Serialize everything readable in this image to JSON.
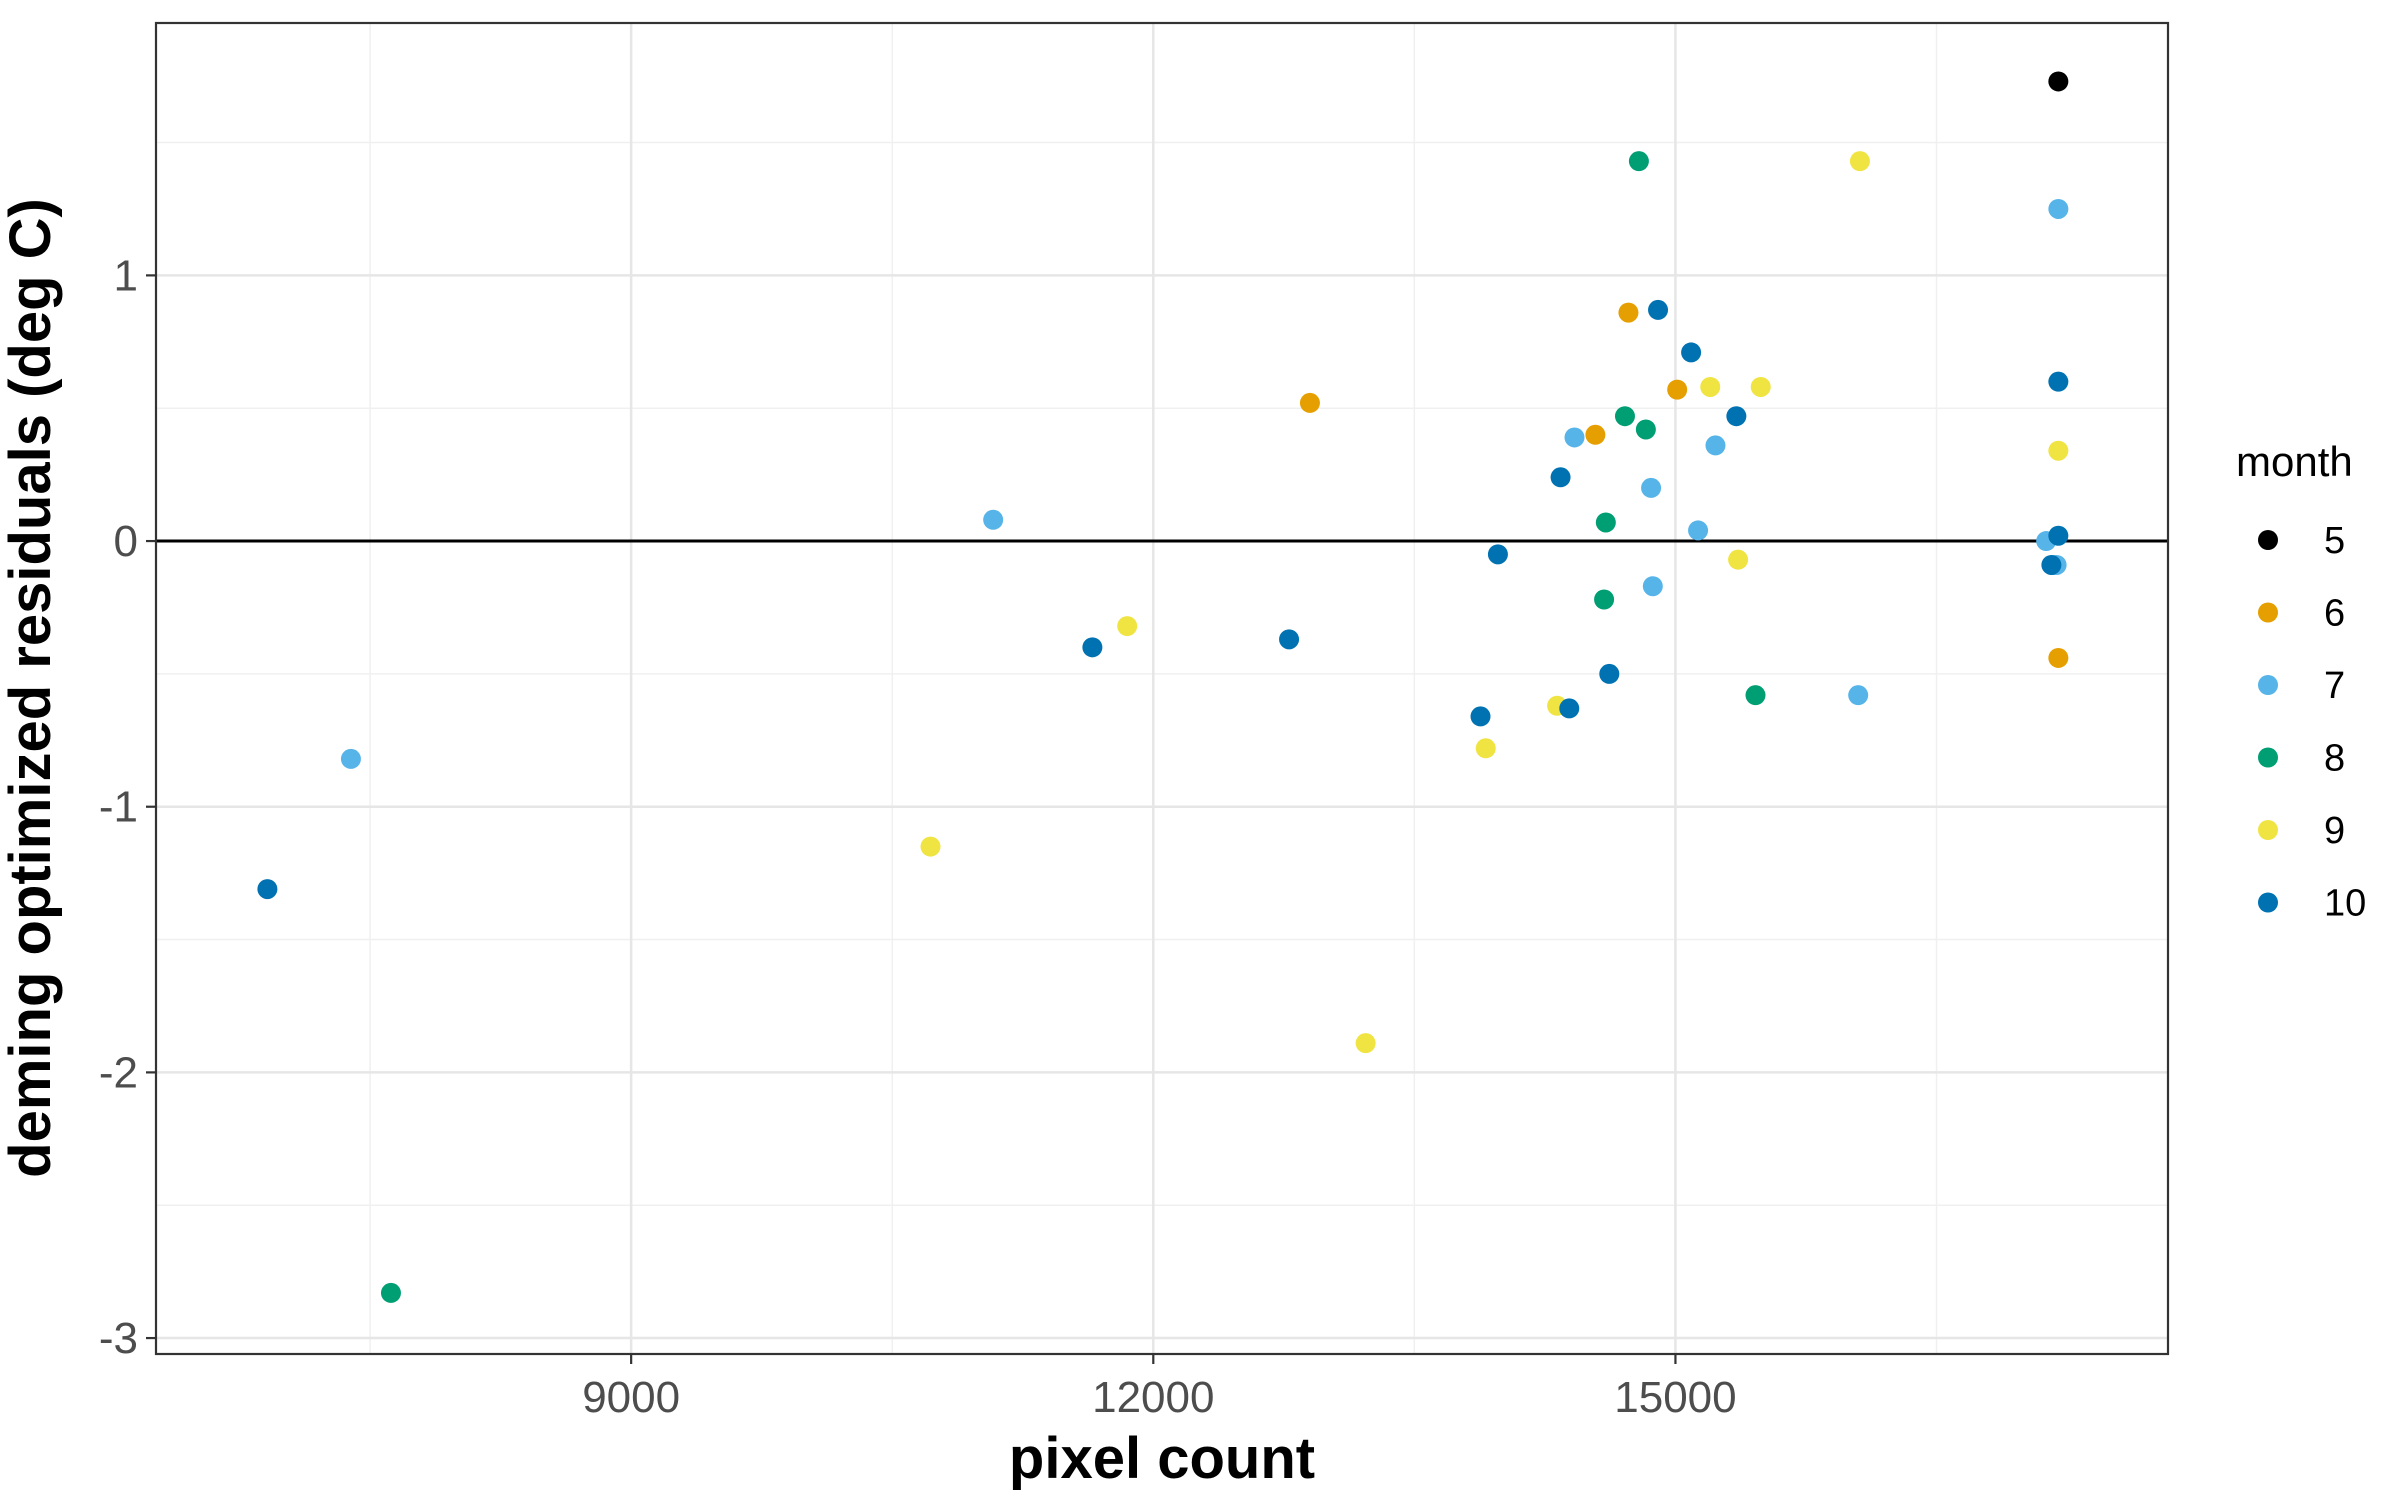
{
  "chart_data": {
    "type": "scatter",
    "xlabel": "pixel count",
    "ylabel": "deming optimized residuals (deg C)",
    "xlim": [
      6270,
      17830
    ],
    "ylim": [
      -3.06,
      1.95
    ],
    "x_ticks": [
      9000,
      12000,
      15000
    ],
    "x_tick_labels": [
      "9000",
      "12000",
      "15000"
    ],
    "y_ticks": [
      -3,
      -2,
      -1,
      0,
      1
    ],
    "y_tick_labels": [
      "-3",
      "-2",
      "-1",
      "0",
      "1"
    ],
    "x_minor_gridlines": [
      7500,
      10500,
      13500,
      16500
    ],
    "y_minor_gridlines": [
      -2.5,
      -1.5,
      -0.5,
      0.5,
      1.5
    ],
    "grid": true,
    "hline": 0,
    "legend": {
      "title": "month",
      "position": "right"
    },
    "series": [
      {
        "name": "5",
        "color": "#000000",
        "x": [
          17200
        ],
        "y": [
          1.73
        ]
      },
      {
        "name": "6",
        "color": "#E69F00",
        "x": [
          12900,
          14730,
          14540,
          15010,
          17200
        ],
        "y": [
          0.52,
          0.86,
          0.4,
          0.57,
          -0.44
        ]
      },
      {
        "name": "7",
        "color": "#56B4E9",
        "x": [
          7390,
          11080,
          14420,
          14860,
          14870,
          15130,
          15230,
          16050,
          17200,
          17130,
          17170,
          17190
        ],
        "y": [
          -0.82,
          0.08,
          0.39,
          0.2,
          -0.17,
          0.04,
          0.36,
          -0.58,
          1.25,
          0.0,
          -0.09,
          -0.09
        ]
      },
      {
        "name": "8",
        "color": "#009E73",
        "x": [
          7620,
          14790,
          14710,
          14830,
          14600,
          14590,
          15460
        ],
        "y": [
          -2.83,
          1.43,
          0.47,
          0.42,
          0.07,
          -0.22,
          -0.58
        ]
      },
      {
        "name": "9",
        "color": "#F0E442",
        "x": [
          10720,
          11850,
          13220,
          13910,
          14320,
          15200,
          15490,
          15360,
          16060,
          17200
        ],
        "y": [
          -1.15,
          -0.32,
          -1.89,
          -0.78,
          -0.62,
          0.58,
          0.58,
          -0.07,
          1.43,
          0.34
        ]
      },
      {
        "name": "10",
        "color": "#0072B2",
        "x": [
          6910,
          11650,
          12780,
          13880,
          13980,
          14340,
          14390,
          14620,
          14900,
          15090,
          15350,
          17200,
          17200,
          17160
        ],
        "y": [
          -1.31,
          -0.4,
          -0.37,
          -0.66,
          -0.05,
          0.24,
          -0.63,
          -0.5,
          0.87,
          0.71,
          0.47,
          0.6,
          0.02,
          -0.09
        ]
      }
    ]
  }
}
